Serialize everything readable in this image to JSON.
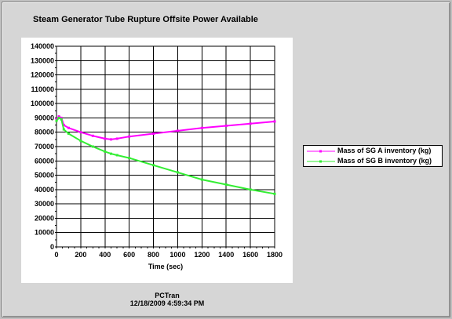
{
  "title": "Steam Generator Tube Rupture Offsite Power Available",
  "footer": {
    "app": "PCTran",
    "timestamp": "12/18/2009 4:59:34 PM"
  },
  "colors": {
    "series_a": "#ff00ff",
    "series_b": "#33ee33",
    "background": "#d6d6d6"
  },
  "chart_data": {
    "type": "line",
    "title": "Steam Generator Tube Rupture Offsite Power Available",
    "xlabel": "Time (sec)",
    "ylabel": "",
    "xlim": [
      0,
      1800
    ],
    "ylim": [
      0,
      140000
    ],
    "x_ticks": [
      0,
      200,
      400,
      600,
      800,
      1000,
      1200,
      1400,
      1600,
      1800
    ],
    "y_ticks": [
      0,
      10000,
      20000,
      30000,
      40000,
      50000,
      60000,
      70000,
      80000,
      90000,
      100000,
      110000,
      120000,
      130000,
      140000
    ],
    "grid": true,
    "legend_position": "right",
    "series": [
      {
        "name": "Mass of SG A inventory (kg)",
        "color": "#ff00ff",
        "x": [
          0,
          20,
          40,
          60,
          100,
          200,
          300,
          400,
          450,
          500,
          600,
          800,
          1000,
          1200,
          1400,
          1600,
          1800
        ],
        "y": [
          89000,
          91000,
          90000,
          85000,
          83000,
          80000,
          77500,
          75500,
          75000,
          75500,
          77000,
          79000,
          81000,
          83000,
          84500,
          86000,
          87500
        ]
      },
      {
        "name": "Mass of SG B inventory (kg)",
        "color": "#33ee33",
        "x": [
          0,
          20,
          40,
          60,
          100,
          200,
          300,
          400,
          450,
          500,
          600,
          800,
          1000,
          1200,
          1400,
          1600,
          1800
        ],
        "y": [
          88000,
          90000,
          89000,
          82000,
          79000,
          74000,
          70000,
          66500,
          65000,
          64000,
          62000,
          57000,
          52000,
          47000,
          43500,
          40000,
          37000
        ]
      }
    ]
  }
}
